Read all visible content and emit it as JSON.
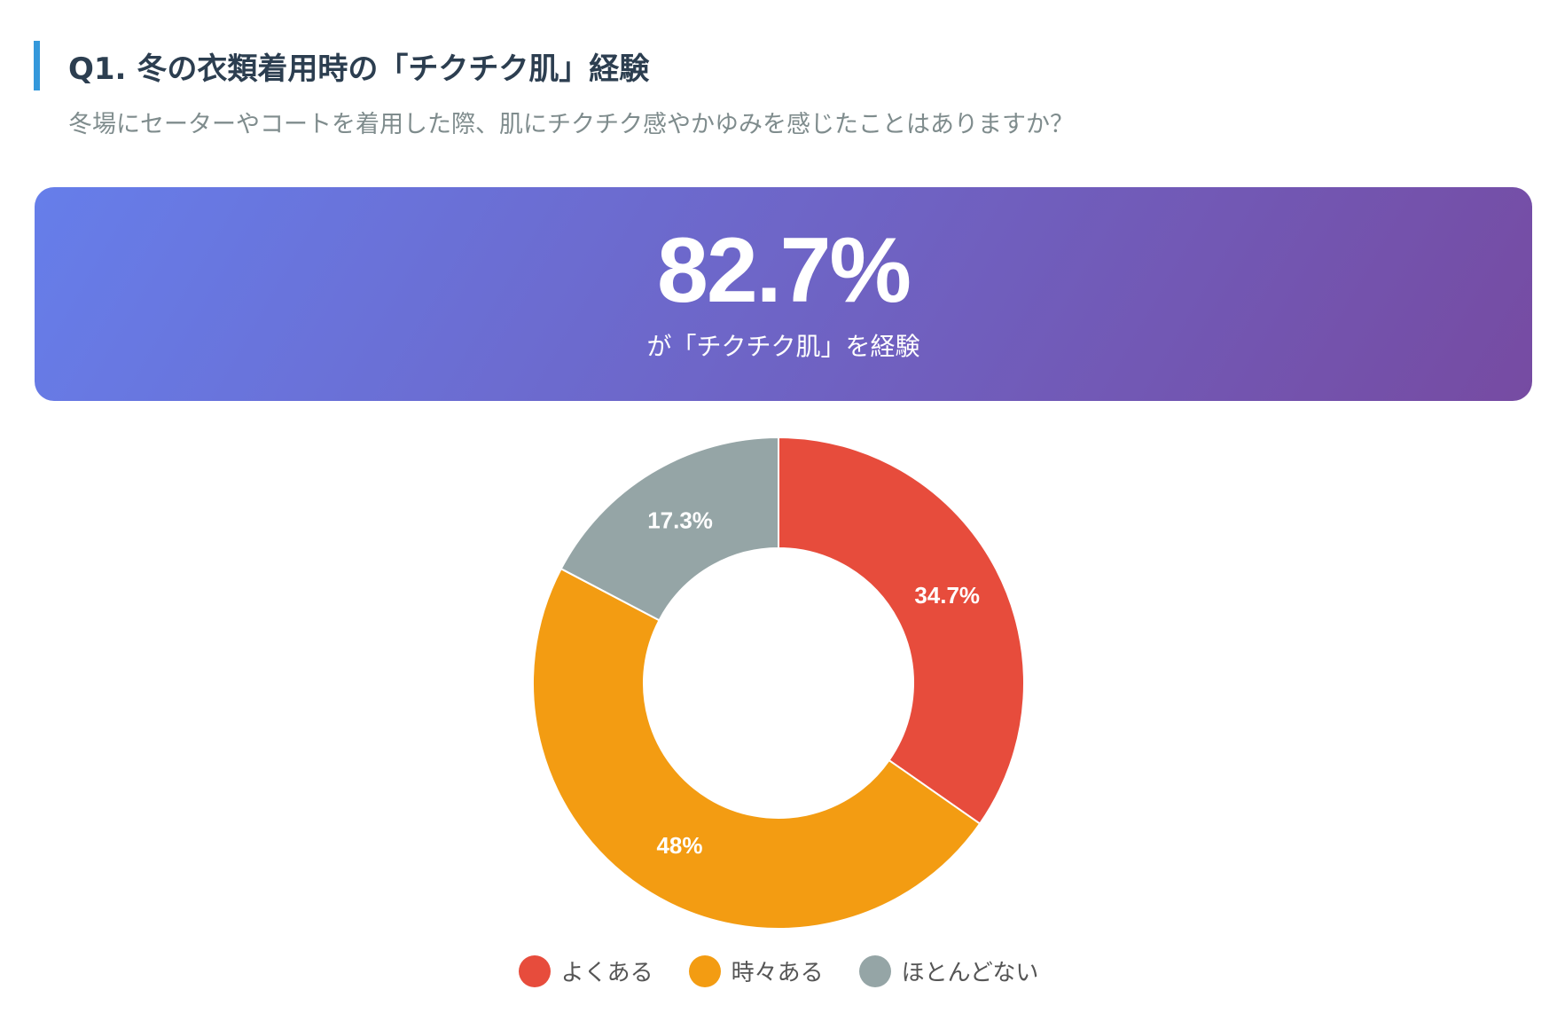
{
  "question": {
    "title": "Q1. 冬の衣類着用時の「チクチク肌」経験",
    "subtitle": "冬場にセーターやコートを着用した際、肌にチクチク感やかゆみを感じたことはありますか？"
  },
  "highlight": {
    "value": "82.7%",
    "caption": "が「チクチク肌」を経験"
  },
  "chart_data": {
    "type": "pie",
    "variant": "donut",
    "categories": [
      "よくある",
      "時々ある",
      "ほとんどない"
    ],
    "values": [
      34.7,
      48,
      17.3
    ],
    "labels": [
      "34.7%",
      "48%",
      "17.3%"
    ],
    "colors": [
      "#e74c3c",
      "#f39c12",
      "#95a5a6"
    ],
    "legend_position": "bottom"
  }
}
